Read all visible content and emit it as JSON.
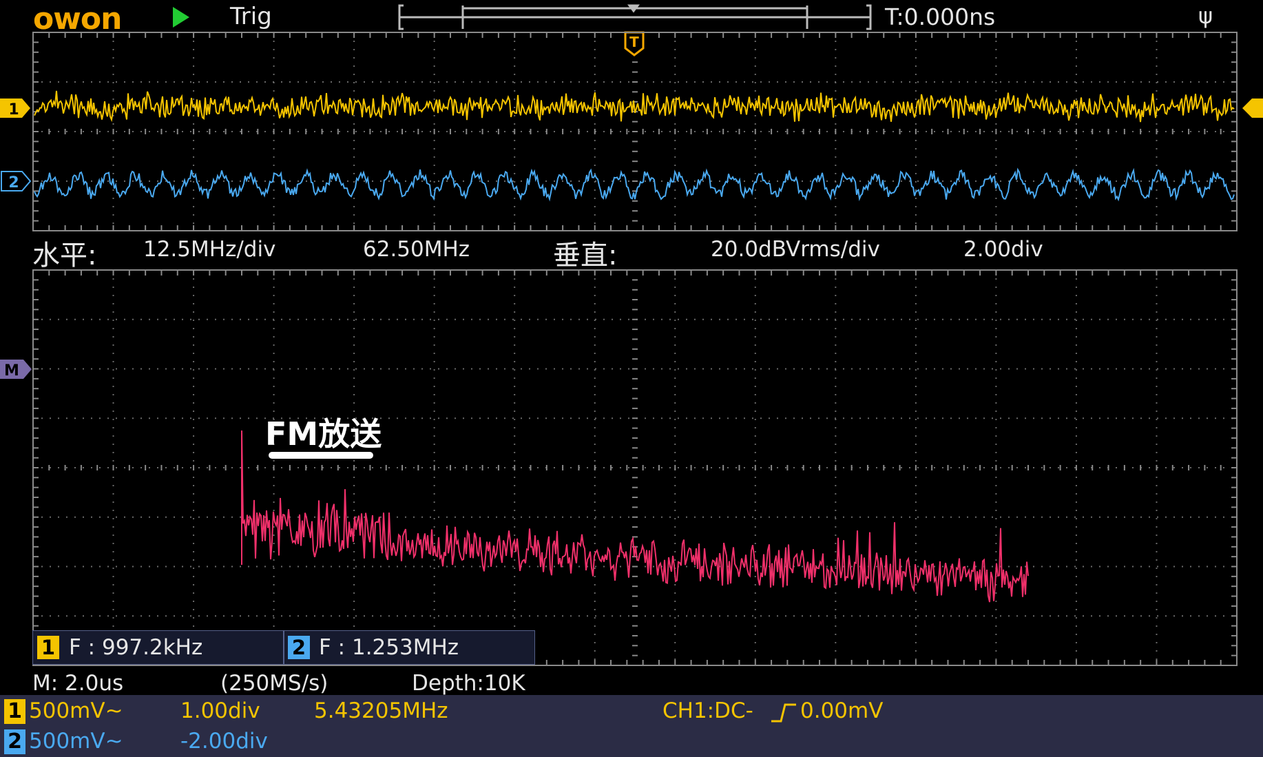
{
  "header": {
    "logo": "owon",
    "run_state": "Trig",
    "time_offset": "T:0.000ns"
  },
  "horizontal": {
    "label": "水平:",
    "scale": "12.5MHz/div",
    "center": "62.50MHz"
  },
  "vertical": {
    "label": "垂直:",
    "scale": "20.0dBVrms/div",
    "offset": "2.00div"
  },
  "markers": {
    "ch1": "1",
    "ch2": "2",
    "math": "M",
    "trigger": "T"
  },
  "annotation": {
    "text": "FM放送"
  },
  "measurements": [
    {
      "channel": "1",
      "text": "F : 997.2kHz"
    },
    {
      "channel": "2",
      "text": "F : 1.253MHz"
    }
  ],
  "acquisition": {
    "timebase": "M: 2.0us",
    "sample_rate": "(250MS/s)",
    "depth": "Depth:10K"
  },
  "channels": [
    {
      "id": "1",
      "volts": "500mV~",
      "position": "1.00div",
      "frequency": "5.43205MHz"
    },
    {
      "id": "2",
      "volts": "500mV~",
      "position": "-2.00div"
    }
  ],
  "trigger_info": {
    "source": "CH1:DC-",
    "level": "0.00mV"
  },
  "colors": {
    "ch1": "#f5c400",
    "ch2": "#4aa9f0",
    "math": "#f0306a",
    "grid": "#8a8a8a",
    "status_bar": "#2b2c45"
  }
}
